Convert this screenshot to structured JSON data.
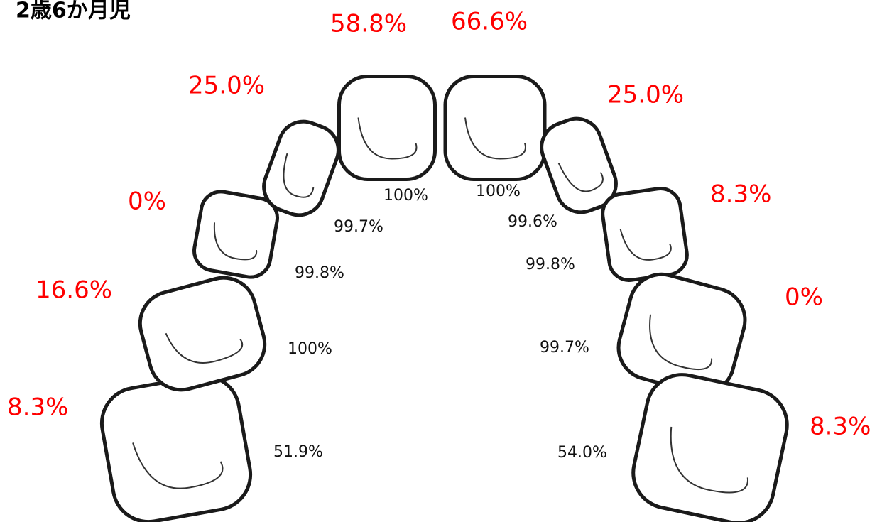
{
  "title": "2歳6か月児",
  "teeth": [
    {
      "outer": "8.3%",
      "inner": "51.9%"
    },
    {
      "outer": "16.6%",
      "inner": "100%"
    },
    {
      "outer": "0%",
      "inner": "99.8%"
    },
    {
      "outer": "25.0%",
      "inner": "99.7%"
    },
    {
      "outer": "58.8%",
      "inner": "100%"
    },
    {
      "outer": "66.6%",
      "inner": "100%"
    },
    {
      "outer": "25.0%",
      "inner": "99.6%"
    },
    {
      "outer": "8.3%",
      "inner": "99.8%"
    },
    {
      "outer": "0%",
      "inner": "99.7%"
    },
    {
      "outer": "8.3%",
      "inner": "54.0%"
    }
  ]
}
